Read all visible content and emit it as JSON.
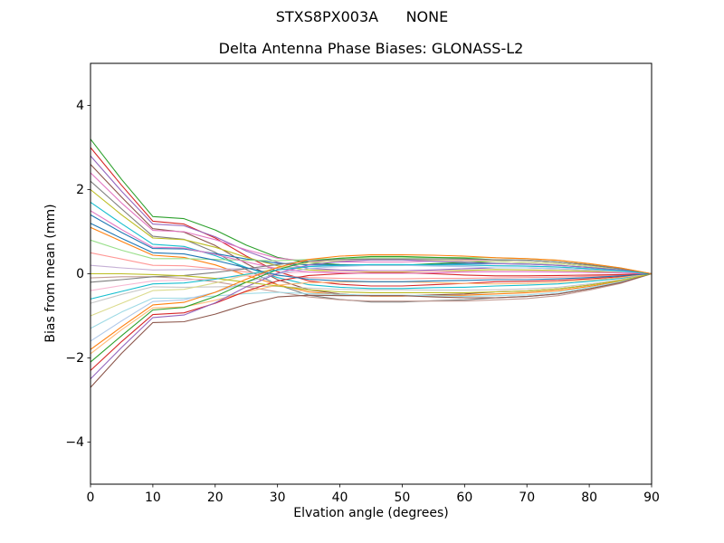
{
  "chart": {
    "suptitle": "STXS8PX003A      NONE",
    "title": "Delta Antenna Phase Biases: GLONASS-L2",
    "xlabel": "Elvation angle (degrees)",
    "ylabel": "Bias from mean (mm)"
  },
  "chart_data": {
    "type": "line",
    "suptitle": "STXS8PX003A      NONE",
    "title": "Delta Antenna Phase Biases: GLONASS-L2",
    "xlabel": "Elvation angle (degrees)",
    "ylabel": "Bias from mean (mm)",
    "xlim": [
      0,
      90
    ],
    "ylim": [
      -5,
      5
    ],
    "grid": false,
    "legend": "none",
    "axis_color": "#000000",
    "xticks": {
      "values": [
        0,
        10,
        20,
        30,
        40,
        50,
        60,
        70,
        80,
        90
      ],
      "labels": [
        "0",
        "10",
        "20",
        "30",
        "40",
        "50",
        "60",
        "70",
        "80",
        "90"
      ]
    },
    "yticks": {
      "values": [
        -4,
        -2,
        0,
        2,
        4
      ],
      "labels": [
        "−4",
        "−2",
        "0",
        "2",
        "4"
      ]
    },
    "x": [
      0,
      5,
      10,
      15,
      20,
      25,
      30,
      35,
      40,
      45,
      50,
      55,
      60,
      65,
      70,
      75,
      80,
      85,
      90
    ],
    "series": [
      {
        "color": "#2ca02c",
        "values": [
          3.2,
          2.24,
          1.36,
          1.31,
          1.04,
          0.68,
          0.39,
          0.26,
          0.22,
          0.2,
          0.2,
          0.24,
          0.27,
          0.29,
          0.27,
          0.24,
          0.18,
          0.11,
          0
        ]
      },
      {
        "color": "#d62728",
        "values": [
          3.0,
          2.1,
          1.25,
          1.18,
          0.85,
          0.42,
          0.05,
          -0.17,
          -0.25,
          -0.29,
          -0.29,
          -0.26,
          -0.23,
          -0.19,
          -0.18,
          -0.16,
          -0.12,
          -0.07,
          0
        ]
      },
      {
        "color": "#9467bd",
        "values": [
          2.8,
          1.96,
          1.18,
          1.14,
          0.88,
          0.54,
          0.27,
          0.13,
          0.09,
          0.07,
          0.07,
          0.09,
          0.12,
          0.14,
          0.14,
          0.12,
          0.09,
          0.05,
          0
        ]
      },
      {
        "color": "#8c564b",
        "values": [
          2.6,
          1.82,
          1.07,
          0.99,
          0.67,
          0.24,
          -0.14,
          -0.38,
          -0.48,
          -0.53,
          -0.53,
          -0.5,
          -0.48,
          -0.43,
          -0.41,
          -0.36,
          -0.27,
          -0.16,
          0
        ]
      },
      {
        "color": "#e377c2",
        "values": [
          2.4,
          1.68,
          1.03,
          1.0,
          0.81,
          0.57,
          0.37,
          0.3,
          0.28,
          0.28,
          0.28,
          0.3,
          0.33,
          0.33,
          0.32,
          0.28,
          0.21,
          0.12,
          0
        ]
      },
      {
        "color": "#7f7f7f",
        "values": [
          2.2,
          1.54,
          0.89,
          0.82,
          0.51,
          0.1,
          -0.26,
          -0.51,
          -0.61,
          -0.67,
          -0.67,
          -0.64,
          -0.62,
          -0.57,
          -0.54,
          -0.48,
          -0.36,
          -0.21,
          0
        ]
      },
      {
        "color": "#bcbd22",
        "values": [
          2.0,
          1.4,
          0.85,
          0.81,
          0.63,
          0.39,
          0.19,
          0.09,
          0.06,
          0.04,
          0.04,
          0.06,
          0.08,
          0.1,
          0.09,
          0.08,
          0.06,
          0.04,
          0
        ]
      },
      {
        "color": "#17becf",
        "values": [
          1.7,
          1.19,
          0.7,
          0.65,
          0.43,
          0.15,
          -0.09,
          -0.26,
          -0.32,
          -0.35,
          -0.35,
          -0.33,
          -0.32,
          -0.29,
          -0.27,
          -0.24,
          -0.18,
          -0.11,
          0
        ]
      },
      {
        "color": "#1f77b4",
        "values": [
          1.4,
          0.98,
          0.6,
          0.59,
          0.48,
          0.35,
          0.25,
          0.21,
          0.21,
          0.21,
          0.21,
          0.22,
          0.24,
          0.24,
          0.23,
          0.2,
          0.15,
          0.09,
          0
        ]
      },
      {
        "color": "#ff7f0e",
        "values": [
          1.1,
          0.77,
          0.44,
          0.39,
          0.21,
          -0.04,
          -0.26,
          -0.43,
          -0.5,
          -0.53,
          -0.53,
          -0.52,
          -0.51,
          -0.48,
          -0.45,
          -0.4,
          -0.3,
          -0.18,
          0
        ]
      },
      {
        "color": "#98df8a",
        "values": [
          0.8,
          0.56,
          0.36,
          0.36,
          0.34,
          0.32,
          0.31,
          0.34,
          0.36,
          0.38,
          0.38,
          0.38,
          0.39,
          0.38,
          0.36,
          0.32,
          0.24,
          0.14,
          0
        ]
      },
      {
        "color": "#ff9896",
        "values": [
          0.5,
          0.35,
          0.2,
          0.19,
          0.12,
          0.04,
          -0.04,
          -0.09,
          -0.11,
          -0.12,
          -0.12,
          -0.11,
          -0.11,
          -0.1,
          -0.09,
          -0.08,
          -0.06,
          -0.04,
          0
        ]
      },
      {
        "color": "#c5b0d5",
        "values": [
          0.2,
          0.14,
          0.09,
          0.1,
          0.11,
          0.12,
          0.14,
          0.17,
          0.19,
          0.2,
          0.2,
          0.2,
          0.2,
          0.19,
          0.18,
          0.16,
          0.12,
          0.07,
          0
        ]
      },
      {
        "color": "#c49c94",
        "values": [
          -0.1,
          -0.07,
          -0.07,
          -0.11,
          -0.19,
          -0.31,
          -0.43,
          -0.55,
          -0.62,
          -0.65,
          -0.65,
          -0.65,
          -0.65,
          -0.62,
          -0.59,
          -0.52,
          -0.39,
          -0.23,
          0
        ]
      },
      {
        "color": "#f7b6d2",
        "values": [
          -0.4,
          -0.28,
          -0.17,
          -0.15,
          -0.11,
          -0.05,
          0.01,
          0.04,
          0.06,
          0.06,
          0.06,
          0.06,
          0.05,
          0.05,
          0.05,
          0.04,
          0.03,
          0.02,
          0
        ]
      },
      {
        "color": "#c7c7c7",
        "values": [
          -0.7,
          -0.49,
          -0.31,
          -0.32,
          -0.31,
          -0.3,
          -0.3,
          -0.34,
          -0.37,
          -0.38,
          -0.38,
          -0.39,
          -0.39,
          -0.38,
          -0.36,
          -0.32,
          -0.24,
          -0.14,
          0
        ]
      },
      {
        "color": "#dbdb8d",
        "values": [
          -1.0,
          -0.7,
          -0.4,
          -0.37,
          -0.22,
          -0.03,
          0.14,
          0.26,
          0.31,
          0.33,
          0.33,
          0.32,
          0.31,
          0.29,
          0.27,
          0.24,
          0.18,
          0.11,
          0
        ]
      },
      {
        "color": "#9edae5",
        "values": [
          -1.3,
          -0.91,
          -0.58,
          -0.58,
          -0.53,
          -0.47,
          -0.44,
          -0.47,
          -0.49,
          -0.51,
          -0.51,
          -0.52,
          -0.54,
          -0.52,
          -0.5,
          -0.44,
          -0.33,
          -0.19,
          0
        ]
      },
      {
        "color": "#aec7e8",
        "values": [
          -1.6,
          -1.12,
          -0.66,
          -0.62,
          -0.44,
          -0.2,
          0.0,
          0.13,
          0.17,
          0.2,
          0.2,
          0.18,
          0.17,
          0.14,
          0.14,
          0.12,
          0.09,
          0.05,
          0
        ]
      },
      {
        "color": "#ffbb78",
        "values": [
          -1.9,
          -1.33,
          -0.81,
          -0.79,
          -0.63,
          -0.43,
          -0.27,
          -0.21,
          -0.2,
          -0.19,
          -0.19,
          -0.21,
          -0.23,
          -0.24,
          -0.23,
          -0.2,
          -0.15,
          -0.09,
          0
        ]
      },
      {
        "color": "#2ca02c",
        "values": [
          -2.1,
          -1.47,
          -0.86,
          -0.8,
          -0.54,
          -0.2,
          0.1,
          0.3,
          0.37,
          0.41,
          0.41,
          0.39,
          0.37,
          0.33,
          0.32,
          0.28,
          0.21,
          0.12,
          0
        ]
      },
      {
        "color": "#d62728",
        "values": [
          -2.3,
          -1.61,
          -0.97,
          -0.93,
          -0.7,
          -0.41,
          -0.17,
          -0.04,
          0.0,
          0.02,
          0.02,
          0.0,
          -0.03,
          -0.05,
          -0.05,
          -0.04,
          -0.03,
          -0.02,
          0
        ]
      },
      {
        "color": "#9467bd",
        "values": [
          -2.5,
          -1.75,
          -1.04,
          -0.98,
          -0.69,
          -0.31,
          0.01,
          0.21,
          0.29,
          0.33,
          0.33,
          0.3,
          0.28,
          0.24,
          0.23,
          0.2,
          0.15,
          0.09,
          0
        ]
      },
      {
        "color": "#8c564b",
        "values": [
          -2.7,
          -1.89,
          -1.16,
          -1.14,
          -0.96,
          -0.73,
          -0.55,
          -0.51,
          -0.52,
          -0.52,
          -0.52,
          -0.55,
          -0.57,
          -0.57,
          -0.54,
          -0.48,
          -0.36,
          -0.21,
          0
        ]
      },
      {
        "color": "#e377c2",
        "values": [
          1.5,
          1.05,
          0.63,
          0.61,
          0.46,
          0.28,
          0.12,
          0.04,
          0.02,
          0.01,
          0.01,
          0.02,
          0.04,
          0.05,
          0.05,
          0.04,
          0.03,
          0.02,
          0
        ]
      },
      {
        "color": "#7f7f7f",
        "values": [
          -0.2,
          -0.14,
          -0.07,
          -0.04,
          0.03,
          0.12,
          0.22,
          0.3,
          0.34,
          0.35,
          0.35,
          0.35,
          0.35,
          0.33,
          0.32,
          0.28,
          0.21,
          0.12,
          0
        ]
      },
      {
        "color": "#bcbd22",
        "values": [
          0.0,
          0.0,
          -0.02,
          -0.05,
          -0.11,
          -0.2,
          -0.29,
          -0.38,
          -0.43,
          -0.45,
          -0.45,
          -0.45,
          -0.45,
          -0.43,
          -0.41,
          -0.36,
          -0.27,
          -0.16,
          0
        ]
      },
      {
        "color": "#17becf",
        "values": [
          -0.6,
          -0.42,
          -0.24,
          -0.22,
          -0.13,
          -0.01,
          0.09,
          0.17,
          0.2,
          0.22,
          0.22,
          0.21,
          0.21,
          0.19,
          0.18,
          0.16,
          0.12,
          0.07,
          0
        ]
      },
      {
        "color": "#1f77b4",
        "values": [
          1.2,
          0.84,
          0.5,
          0.47,
          0.32,
          0.14,
          -0.03,
          -0.13,
          -0.17,
          -0.19,
          -0.19,
          -0.17,
          -0.16,
          -0.14,
          -0.14,
          -0.12,
          -0.09,
          -0.05,
          0
        ]
      },
      {
        "color": "#ff7f0e",
        "values": [
          -1.8,
          -1.26,
          -0.74,
          -0.68,
          -0.44,
          -0.13,
          0.15,
          0.34,
          0.42,
          0.45,
          0.45,
          0.44,
          0.42,
          0.38,
          0.36,
          0.32,
          0.24,
          0.14,
          0
        ]
      }
    ]
  }
}
